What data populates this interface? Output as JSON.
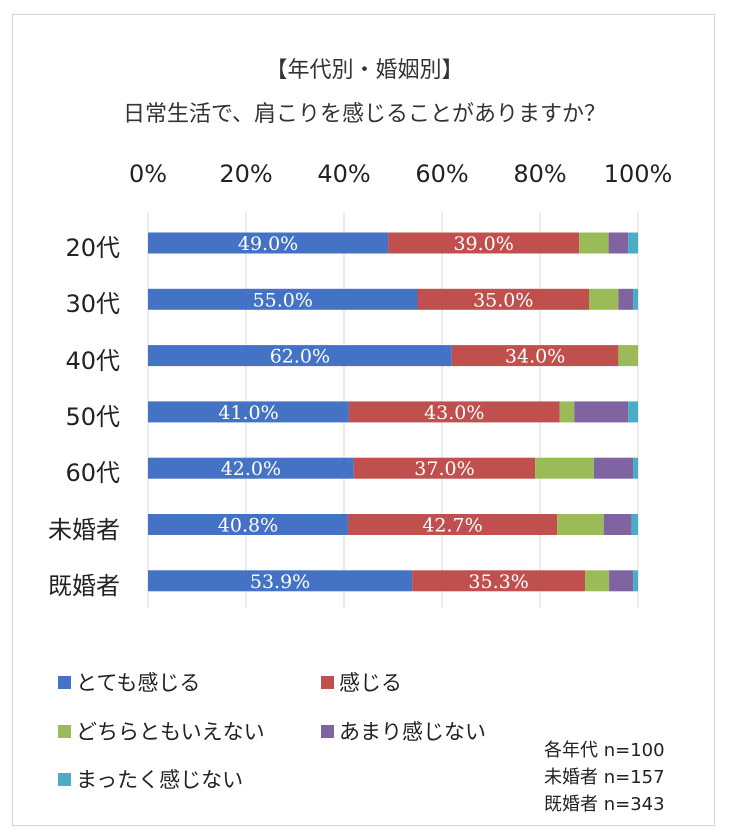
{
  "chart_data": {
    "type": "bar",
    "orientation": "horizontal",
    "stacked": true,
    "title": "【年代別・婚姻別】",
    "subtitle": "日常生活で、肩こりを感じることがありますか？",
    "categories": [
      "20代",
      "30代",
      "40代",
      "50代",
      "60代",
      "未婚者",
      "既婚者"
    ],
    "x_ticks": [
      "0%",
      "20%",
      "40%",
      "60%",
      "80%",
      "100%"
    ],
    "xlim": [
      0,
      100
    ],
    "grid": true,
    "legend_position": "bottom",
    "series": [
      {
        "name": "とても感じる",
        "color": "#4472c4",
        "values": [
          49.0,
          55.0,
          62.0,
          41.0,
          42.0,
          40.8,
          53.9
        ],
        "labels": [
          "49.0%",
          "55.0%",
          "62.0%",
          "41.0%",
          "42.0%",
          "40.8%",
          "53.9%"
        ]
      },
      {
        "name": "感じる",
        "color": "#c0504d",
        "values": [
          39.0,
          35.0,
          34.0,
          43.0,
          37.0,
          42.7,
          35.3
        ],
        "labels": [
          "39.0%",
          "35.0%",
          "34.0%",
          "43.0%",
          "37.0%",
          "42.7%",
          "35.3%"
        ]
      },
      {
        "name": "どちらともいえない",
        "color": "#9bbb59",
        "values": [
          6,
          6,
          4,
          3,
          12,
          9.5,
          4.9
        ]
      },
      {
        "name": "あまり感じない",
        "color": "#8064a2",
        "values": [
          4,
          3,
          0,
          11,
          8,
          5.7,
          4.9
        ]
      },
      {
        "name": "まったく感じない",
        "color": "#4bacc6",
        "values": [
          2,
          1,
          0,
          2,
          1,
          1.3,
          1.0
        ]
      }
    ]
  },
  "notes": [
    "各年代 n=100",
    "未婚者 n=157",
    "既婚者 n=343"
  ]
}
